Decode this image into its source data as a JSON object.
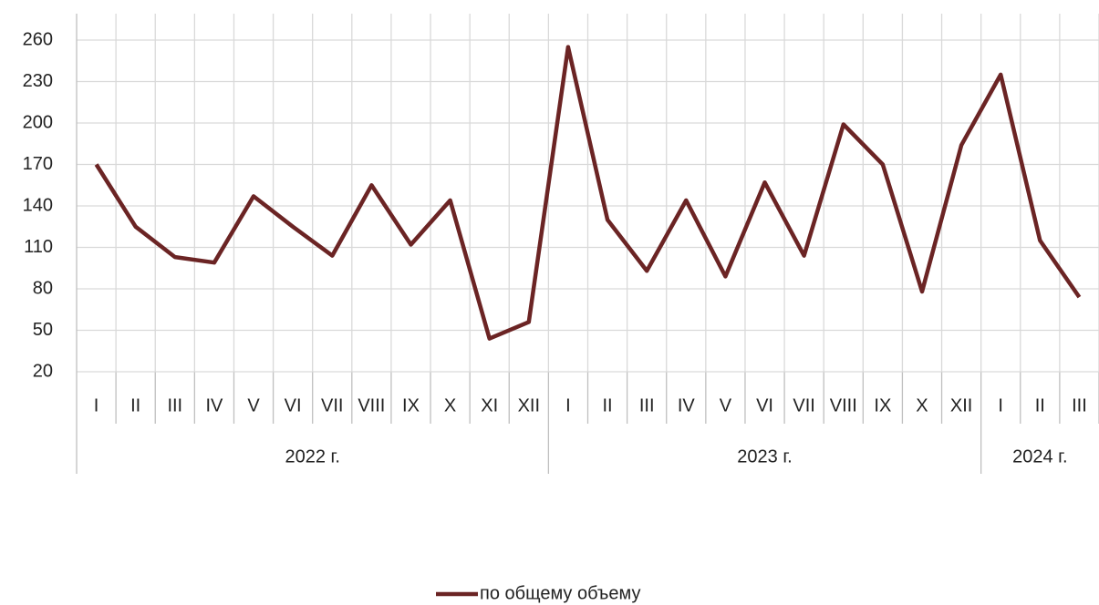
{
  "chart_data": {
    "type": "line",
    "groups": [
      {
        "name": "2022 г.",
        "categories": [
          "I",
          "II",
          "III",
          "IV",
          "V",
          "VI",
          "VII",
          "VIII",
          "IX",
          "X",
          "XI",
          "XII"
        ]
      },
      {
        "name": "2023 г.",
        "categories": [
          "I",
          "II",
          "III",
          "IV",
          "V",
          "VI",
          "VII",
          "VIII",
          "IX",
          "X",
          "XII"
        ]
      },
      {
        "name": "2024 г.",
        "categories": [
          "I",
          "II",
          "III"
        ]
      }
    ],
    "series": [
      {
        "name": "по общему объему",
        "color": "#6b2424",
        "values": [
          170,
          125,
          103,
          99,
          147,
          125,
          104,
          155,
          112,
          144,
          44,
          56,
          255,
          130,
          93,
          144,
          89,
          157,
          104,
          199,
          170,
          78,
          184,
          235,
          115,
          74
        ]
      }
    ],
    "ylim": [
      20,
      260
    ],
    "yticks": [
      20,
      50,
      80,
      110,
      140,
      170,
      200,
      230,
      260
    ],
    "grid": true,
    "legend": "bottom"
  }
}
